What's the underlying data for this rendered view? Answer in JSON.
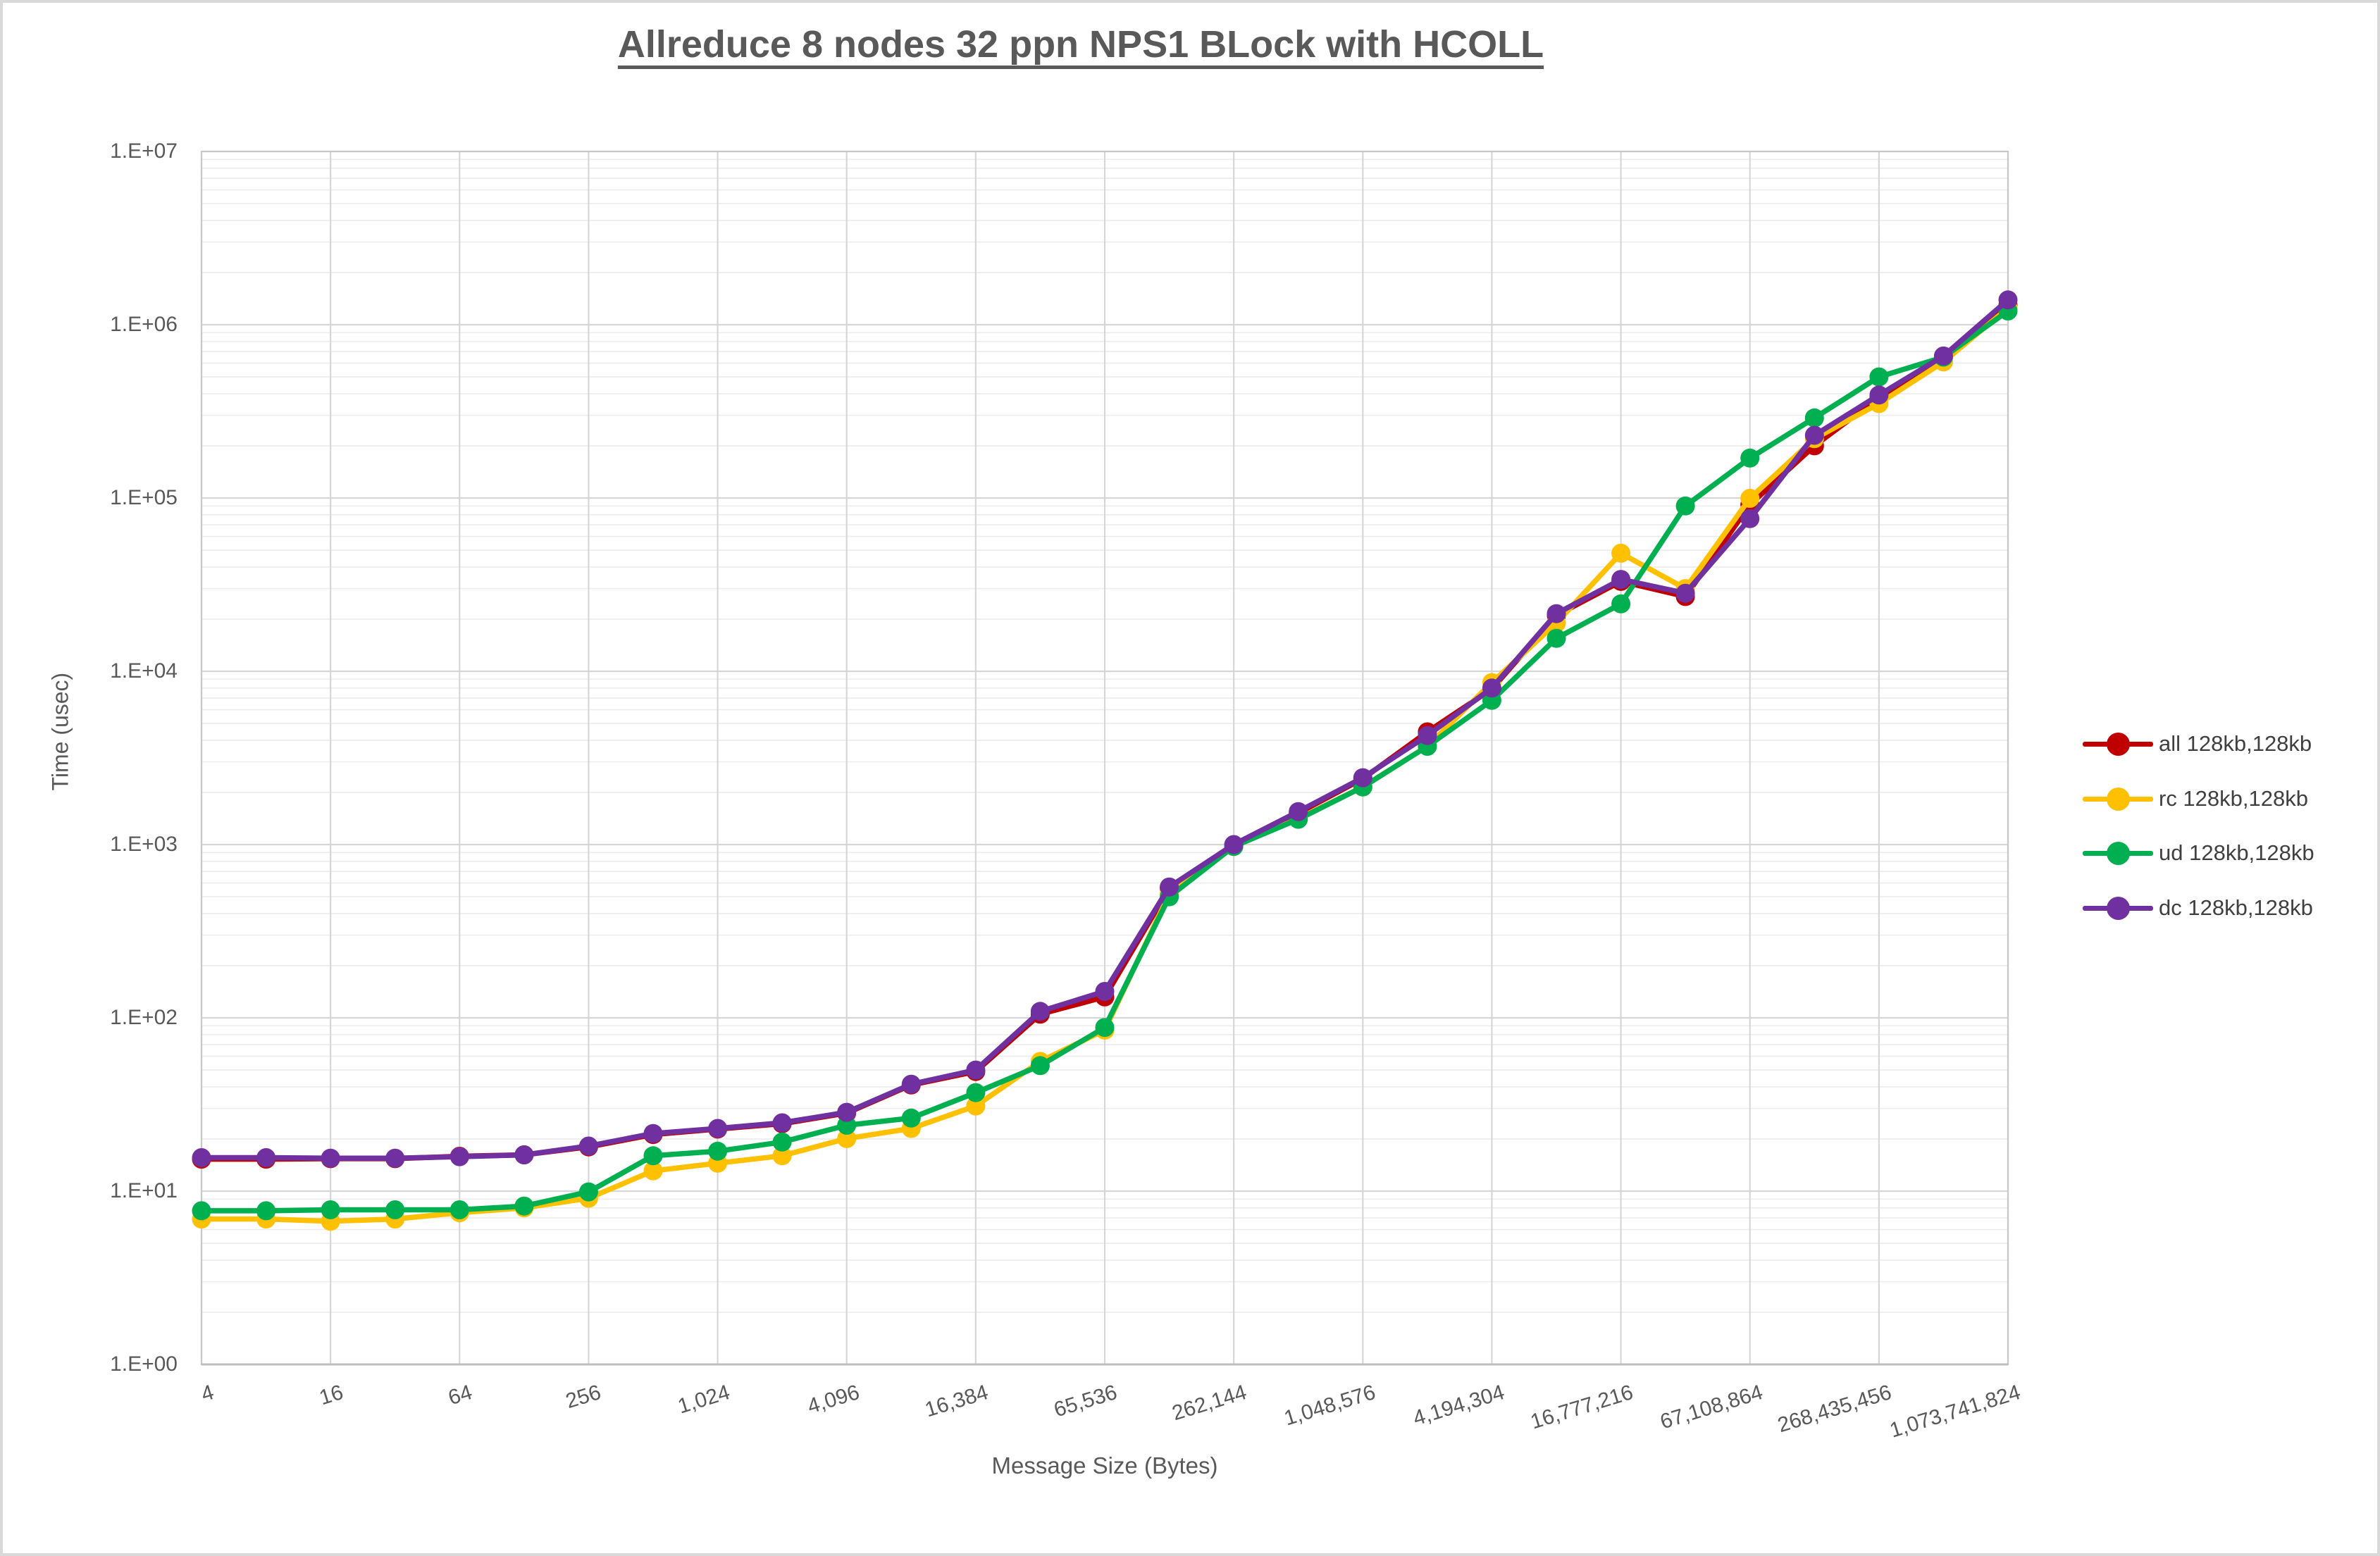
{
  "chart_data": {
    "type": "line",
    "title": "Allreduce 8 nodes 32 ppn NPS1 BLock with HCOLL",
    "xlabel": "Message Size (Bytes)",
    "ylabel": "Time (usec)",
    "x_scale": "log2_categories",
    "y_scale": "log10",
    "ylim": [
      1,
      10000000
    ],
    "grid": {
      "major": true,
      "minor": true
    },
    "legend_position": "right",
    "y_tick_labels": [
      "1.E+00",
      "1.E+01",
      "1.E+02",
      "1.E+03",
      "1.E+04",
      "1.E+05",
      "1.E+06",
      "1.E+07"
    ],
    "x_tick_labels": [
      "4",
      "16",
      "64",
      "256",
      "1,024",
      "4,096",
      "16,384",
      "65,536",
      "262,144",
      "1,048,576",
      "4,194,304",
      "16,777,216",
      "67,108,864",
      "268,435,456",
      "1,073,741,824"
    ],
    "sizes": [
      4,
      8,
      16,
      32,
      64,
      128,
      256,
      512,
      1024,
      2048,
      4096,
      8192,
      16384,
      32768,
      65536,
      131072,
      262144,
      524288,
      1048576,
      2097152,
      4194304,
      8388608,
      16777216,
      33554432,
      67108864,
      134217728,
      268435456,
      536870912,
      1073741824
    ],
    "series": [
      {
        "name": "all 128kb,128kb",
        "color": "#C00000",
        "values": [
          15.3,
          15.3,
          15.4,
          15.4,
          15.9,
          16.2,
          18,
          21.2,
          22.8,
          24.5,
          28.2,
          41,
          49,
          105,
          132,
          560,
          990,
          1520,
          2400,
          4470,
          7900,
          21000,
          33000,
          27000,
          91500,
          200000,
          380000,
          650000,
          1300000
        ]
      },
      {
        "name": "rc 128kb,128kb",
        "color": "#FFC000",
        "values": [
          6.9,
          6.9,
          6.7,
          6.9,
          7.5,
          8,
          9.1,
          13.1,
          14.5,
          16,
          20.1,
          23,
          31,
          56,
          85,
          519,
          975,
          1410,
          2150,
          3690,
          8600,
          19000,
          48000,
          30000,
          99500,
          220000,
          351000,
          610000,
          1250000
        ]
      },
      {
        "name": "ud 128kb,128kb",
        "color": "#00B050",
        "values": [
          7.7,
          7.7,
          7.8,
          7.8,
          7.8,
          8.2,
          9.9,
          16,
          17,
          19.2,
          24,
          26.4,
          37,
          53,
          88,
          500,
          975,
          1400,
          2150,
          3690,
          6800,
          15500,
          24500,
          90000,
          170000,
          290000,
          500000,
          650000,
          1200000
        ]
      },
      {
        "name": "dc 128kb,128kb",
        "color": "#7030A0",
        "values": [
          15.6,
          15.6,
          15.5,
          15.5,
          15.8,
          16.2,
          18.2,
          21.5,
          23,
          24.8,
          28.5,
          41.4,
          50,
          109,
          142,
          569,
          1000,
          1550,
          2430,
          4260,
          8000,
          21500,
          33900,
          28200,
          76000,
          230000,
          393000,
          660000,
          1390000
        ]
      }
    ],
    "colors": {
      "grid_major": "#D6D6D6",
      "grid_minor": "#ECECEC",
      "plot_border": "#C8C8C8",
      "axis_line": "#BFBFBF",
      "text": "#595959",
      "legend_text": "#404040",
      "frame": "#D9D9D9"
    }
  }
}
